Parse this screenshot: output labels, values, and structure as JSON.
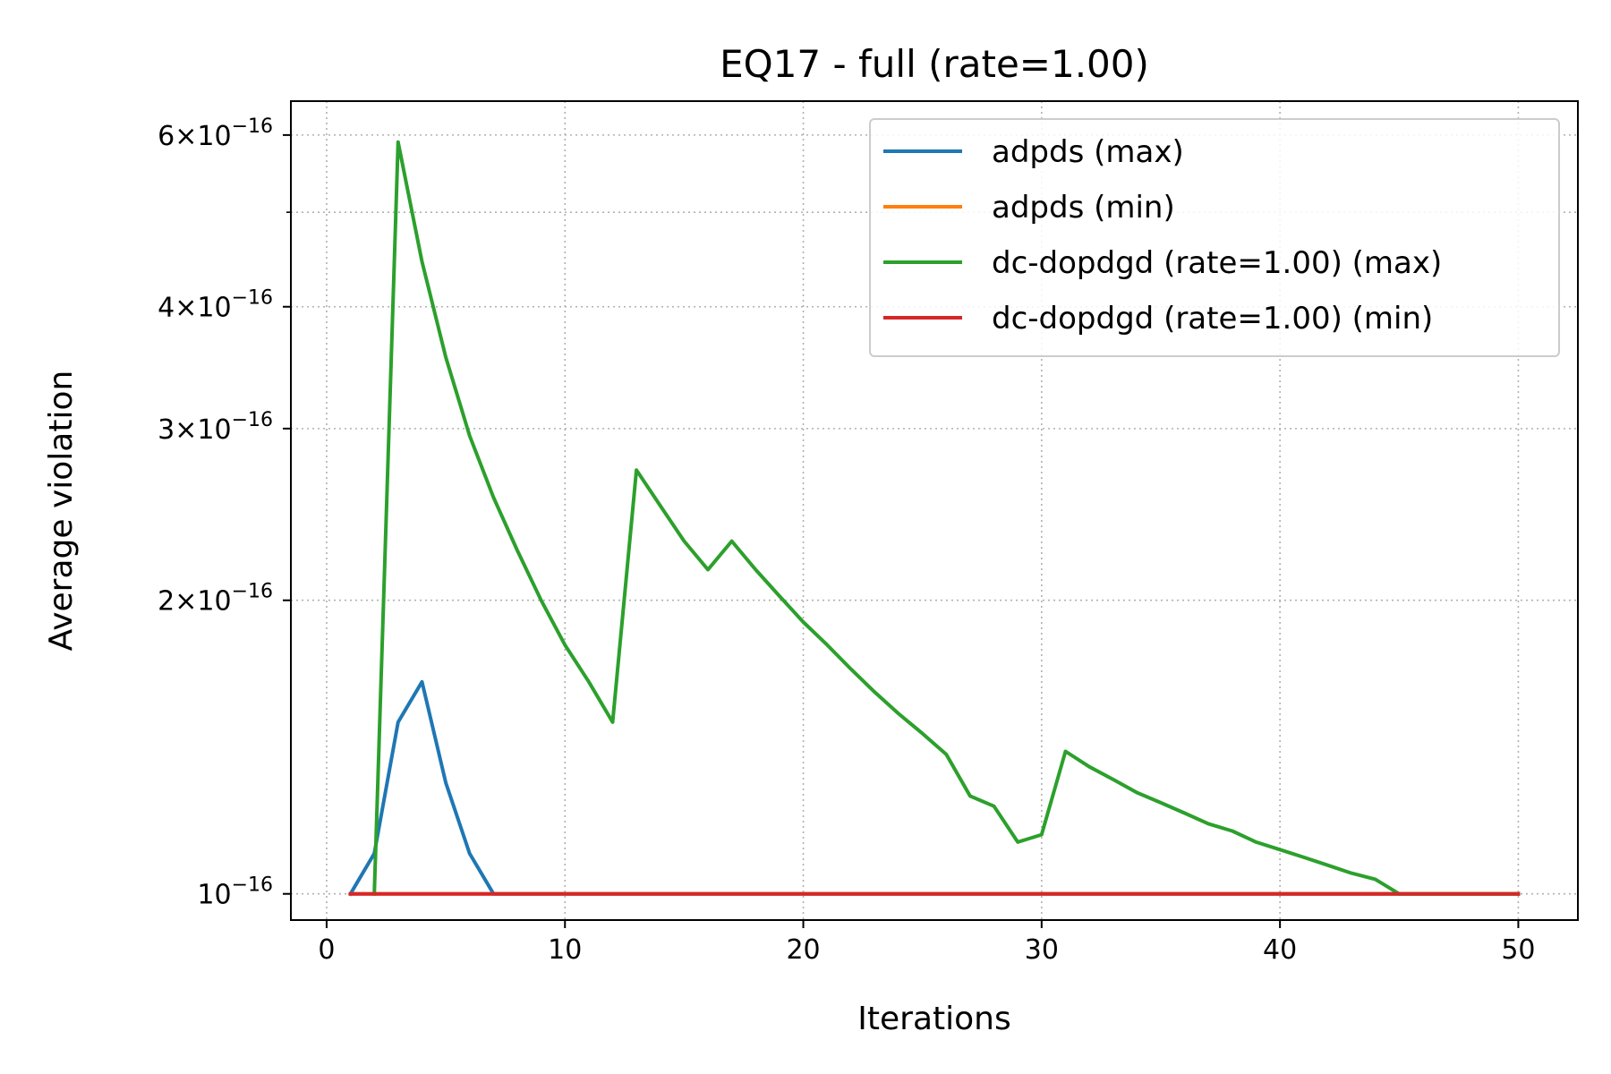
{
  "chart_data": {
    "type": "line",
    "title": "EQ17 - full (rate=1.00)",
    "xlabel": "Iterations",
    "ylabel": "Average violation",
    "xlim": [
      -1.5,
      52.5
    ],
    "ylim": [
      9.4e-17,
      6.5e-16
    ],
    "yscale": "log",
    "grid": true,
    "legend_position": "upper right",
    "x_ticks": [
      {
        "value": 0,
        "label": "0"
      },
      {
        "value": 10,
        "label": "10"
      },
      {
        "value": 20,
        "label": "20"
      },
      {
        "value": 30,
        "label": "30"
      },
      {
        "value": 40,
        "label": "40"
      },
      {
        "value": 50,
        "label": "50"
      }
    ],
    "y_ticks": [
      {
        "value": 1e-16,
        "mantissa": "",
        "base": "10",
        "exponent": "−16"
      },
      {
        "value": 2e-16,
        "mantissa": "2×",
        "base": "10",
        "exponent": "−16"
      },
      {
        "value": 3e-16,
        "mantissa": "3×",
        "base": "10",
        "exponent": "−16"
      },
      {
        "value": 4e-16,
        "mantissa": "4×",
        "base": "10",
        "exponent": "−16"
      },
      {
        "value": 6e-16,
        "mantissa": "6×",
        "base": "10",
        "exponent": "−16"
      }
    ],
    "y_minor_grid": [
      5e-16
    ],
    "series": [
      {
        "name": "adpds (max)",
        "color": "#1f77b4",
        "x": [
          1,
          2,
          3,
          4,
          5,
          6,
          7,
          8,
          9,
          10,
          11,
          12,
          13,
          14,
          15,
          16,
          17,
          18,
          19,
          20,
          21,
          22,
          23,
          24,
          25,
          26,
          27,
          28,
          29,
          30,
          31,
          32,
          33,
          34,
          35,
          36,
          37,
          38,
          39,
          40,
          41,
          42,
          43,
          44,
          45,
          46,
          47,
          48,
          49,
          50
        ],
        "y": [
          1e-16,
          1.1e-16,
          1.5e-16,
          1.65e-16,
          1.3e-16,
          1.1e-16,
          1e-16,
          1e-16,
          1e-16,
          1e-16,
          1e-16,
          1e-16,
          1e-16,
          1e-16,
          1e-16,
          1e-16,
          1e-16,
          1e-16,
          1e-16,
          1e-16,
          1e-16,
          1e-16,
          1e-16,
          1e-16,
          1e-16,
          1e-16,
          1e-16,
          1e-16,
          1e-16,
          1e-16,
          1e-16,
          1e-16,
          1e-16,
          1e-16,
          1e-16,
          1e-16,
          1e-16,
          1e-16,
          1e-16,
          1e-16,
          1e-16,
          1e-16,
          1e-16,
          1e-16,
          1e-16,
          1e-16,
          1e-16,
          1e-16,
          1e-16,
          1e-16
        ]
      },
      {
        "name": "adpds (min)",
        "color": "#ff7f0e",
        "x": [
          1,
          50
        ],
        "y": [
          1e-16,
          1e-16
        ]
      },
      {
        "name": "dc-dopdgd (rate=1.00) (max)",
        "color": "#2ca02c",
        "x": [
          2,
          3,
          4,
          5,
          6,
          7,
          8,
          9,
          10,
          11,
          12,
          13,
          14,
          15,
          16,
          17,
          18,
          19,
          20,
          21,
          22,
          23,
          24,
          25,
          26,
          27,
          28,
          29,
          30,
          31,
          32,
          33,
          34,
          35,
          36,
          37,
          38,
          39,
          40,
          41,
          42,
          43,
          44,
          45,
          46,
          47,
          48,
          49,
          50
        ],
        "y": [
          1e-16,
          5.9e-16,
          4.45e-16,
          3.55e-16,
          2.95e-16,
          2.55e-16,
          2.25e-16,
          2e-16,
          1.8e-16,
          1.65e-16,
          1.5e-16,
          2.72e-16,
          2.5e-16,
          2.3e-16,
          2.15e-16,
          2.3e-16,
          2.15e-16,
          2.02e-16,
          1.9e-16,
          1.8e-16,
          1.7e-16,
          1.61e-16,
          1.53e-16,
          1.46e-16,
          1.39e-16,
          1.26e-16,
          1.23e-16,
          1.13e-16,
          1.15e-16,
          1.4e-16,
          1.35e-16,
          1.31e-16,
          1.27e-16,
          1.24e-16,
          1.21e-16,
          1.18e-16,
          1.16e-16,
          1.13e-16,
          1.11e-16,
          1.09e-16,
          1.07e-16,
          1.05e-16,
          1.035e-16,
          1e-16,
          1e-16,
          1e-16,
          1e-16,
          1e-16,
          1e-16
        ]
      },
      {
        "name": "dc-dopdgd (rate=1.00) (min)",
        "color": "#d62728",
        "x": [
          1,
          50
        ],
        "y": [
          1e-16,
          1e-16
        ]
      }
    ]
  }
}
